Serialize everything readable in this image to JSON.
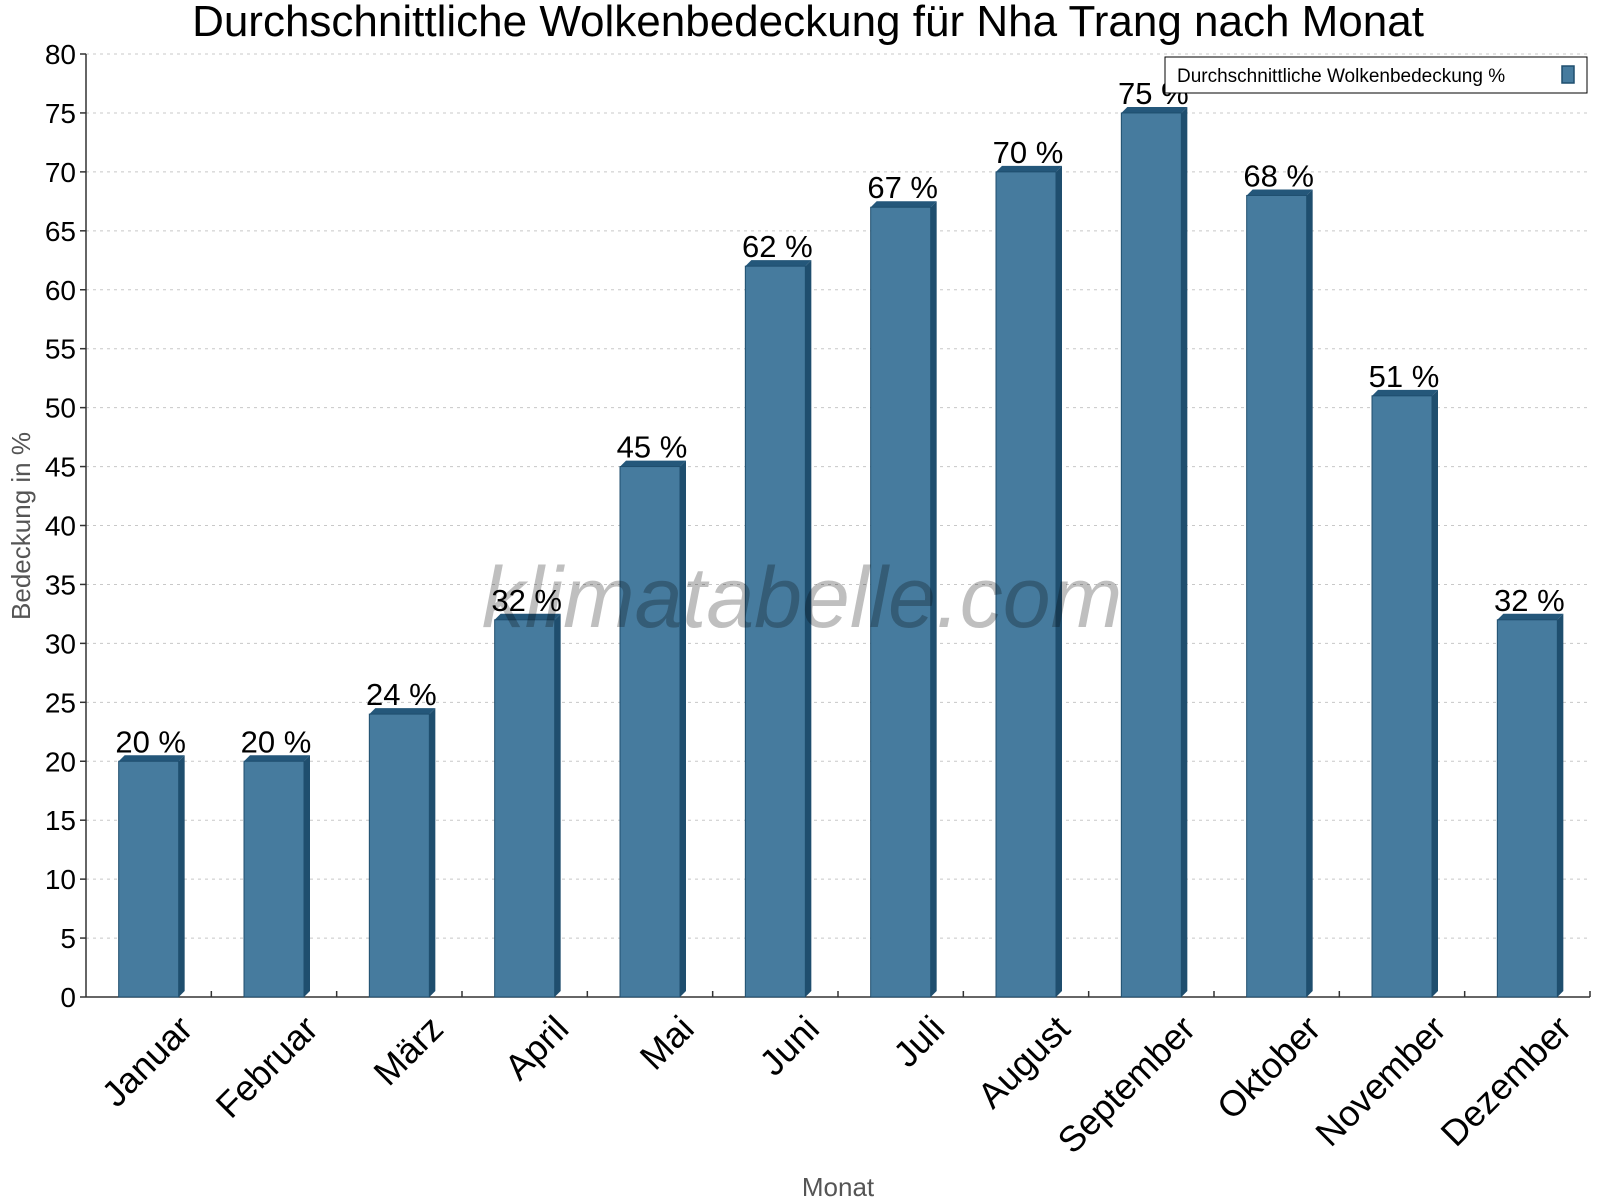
{
  "chart_data": {
    "type": "bar",
    "title": "Durchschnittliche Wolkenbedeckung für Nha Trang nach Monat",
    "xlabel": "Monat",
    "ylabel": "Bedeckung in %",
    "categories": [
      "Januar",
      "Februar",
      "März",
      "April",
      "Mai",
      "Juni",
      "Juli",
      "August",
      "September",
      "Oktober",
      "November",
      "Dezember"
    ],
    "series": [
      {
        "name": "Durchschnittliche Wolkenbedeckung %",
        "values": [
          20,
          20,
          24,
          32,
          45,
          62,
          67,
          70,
          75,
          68,
          51,
          32
        ],
        "value_labels": [
          "20 %",
          "20 %",
          "24 %",
          "32 %",
          "45 %",
          "62 %",
          "67 %",
          "70 %",
          "75 %",
          "68 %",
          "51 %",
          "32 %"
        ]
      }
    ],
    "ylim": [
      0,
      80
    ],
    "yticks": [
      0,
      5,
      10,
      15,
      20,
      25,
      30,
      35,
      40,
      45,
      50,
      55,
      60,
      65,
      70,
      75,
      80
    ],
    "grid": true,
    "legend_position": "top-right",
    "colors": {
      "bar": "#467b9e",
      "bar_side": "#1f4e6e",
      "bar_top": "#24577a"
    }
  },
  "watermark": "klimatabelle.com"
}
